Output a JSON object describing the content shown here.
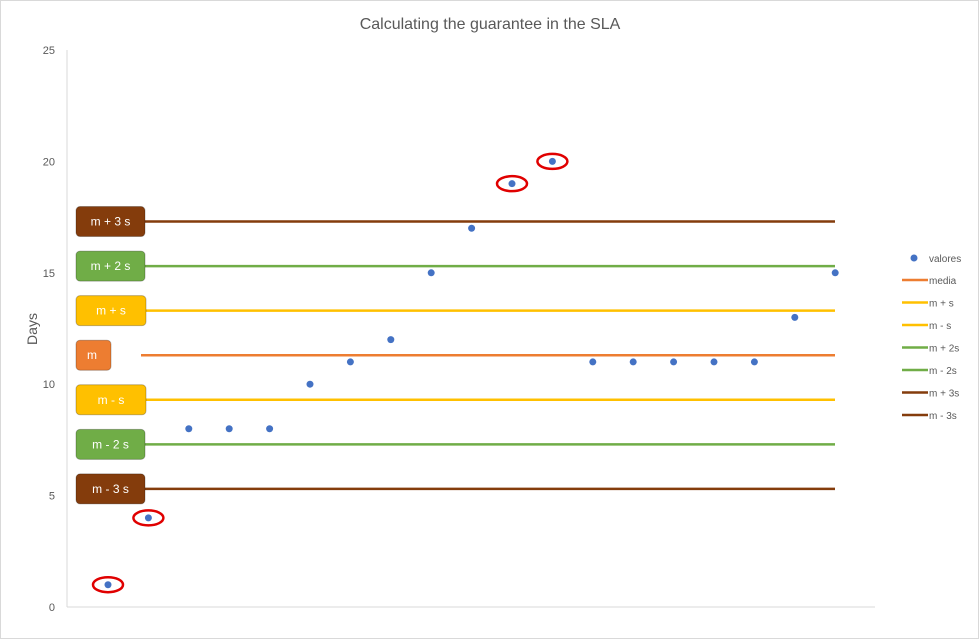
{
  "chart_data": {
    "type": "scatter",
    "title": "Calculating the guarantee in the SLA",
    "ylabel": "Days",
    "xlabel": "",
    "ylim": [
      0,
      25
    ],
    "yticks": [
      0,
      5,
      10,
      15,
      20,
      25
    ],
    "grid": false,
    "legend_position": "right",
    "series": [
      {
        "name": "valores",
        "type": "scatter",
        "color": "#4472C4",
        "x": [
          1,
          2,
          3,
          4,
          5,
          6,
          7,
          8,
          9,
          10,
          11,
          12,
          13,
          14,
          15,
          16,
          17,
          18,
          19
        ],
        "y": [
          1,
          4,
          8,
          8,
          8,
          10,
          11,
          12,
          15,
          17,
          19,
          20,
          11,
          11,
          11,
          11,
          11,
          13,
          15
        ]
      }
    ],
    "reference_lines": [
      {
        "legend": "media",
        "label": "m",
        "value": 11.3,
        "color": "#ED7D31"
      },
      {
        "legend": "m + s",
        "label": "m + s",
        "value": 13.3,
        "color": "#FFC000"
      },
      {
        "legend": "m - s",
        "label": "m - s",
        "value": 9.3,
        "color": "#FFC000"
      },
      {
        "legend": "m + 2s",
        "label": "m + 2 s",
        "value": 15.3,
        "color": "#70AD47"
      },
      {
        "legend": "m - 2s",
        "label": "m - 2 s",
        "value": 7.3,
        "color": "#70AD47"
      },
      {
        "legend": "m + 3s",
        "label": "m + 3 s",
        "value": 17.3,
        "color": "#843C0C"
      },
      {
        "legend": "m - 3s",
        "label": "m - 3 s",
        "value": 5.3,
        "color": "#843C0C"
      }
    ],
    "highlighted_points": [
      1,
      2,
      11,
      12
    ],
    "highlight_color": "#E00000"
  }
}
